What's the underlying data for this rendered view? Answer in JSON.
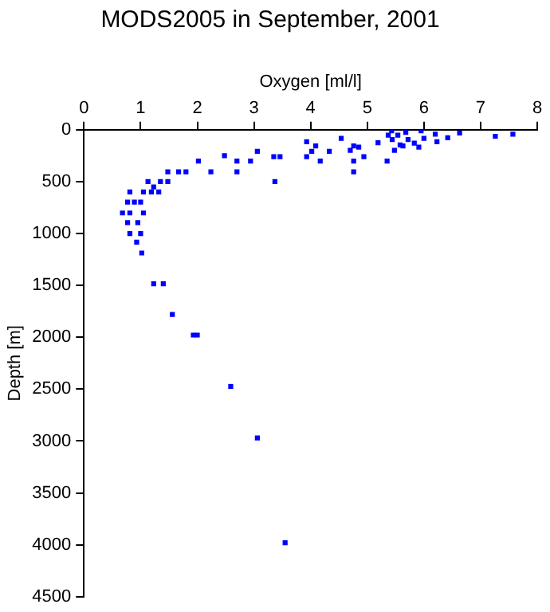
{
  "chart_data": {
    "type": "scatter",
    "title": "MODS2005 in September, 2001",
    "xlabel": "Oxygen [ml/l]",
    "ylabel": "Depth [m]",
    "xlim": [
      0,
      8
    ],
    "xticks": [
      0,
      1,
      2,
      3,
      4,
      5,
      6,
      7,
      8
    ],
    "ylim": [
      4500,
      0
    ],
    "yticks": [
      0,
      500,
      1000,
      1500,
      2000,
      2500,
      3000,
      3500,
      4000,
      4500
    ],
    "grid": false,
    "legend": false,
    "marker": "square",
    "series": [
      {
        "color": "#0000ff",
        "x": [
          5.43,
          5.37,
          5.44,
          5.54,
          5.68,
          5.72,
          5.58,
          5.48,
          5.63,
          5.95,
          6.0,
          6.2,
          6.23,
          6.42,
          6.63,
          7.26,
          7.57,
          5.19,
          5.35,
          5.83,
          5.91,
          4.54,
          4.7,
          4.76,
          4.85,
          4.94,
          4.76,
          4.76,
          3.93,
          4.02,
          3.93,
          4.09,
          4.17,
          4.33,
          3.35,
          3.46,
          3.37,
          3.06,
          2.94,
          2.7,
          2.7,
          2.48,
          2.24,
          2.02,
          1.8,
          1.67,
          1.48,
          1.48,
          1.35,
          1.32,
          1.23,
          1.13,
          1.19,
          1.05,
          0.81,
          1.0,
          0.77,
          0.89,
          0.68,
          0.81,
          1.05,
          0.77,
          0.95,
          0.81,
          1.0,
          0.93,
          1.02,
          1.23,
          1.4,
          1.56,
          1.93,
          2.0,
          2.59,
          3.06,
          3.55
        ],
        "values": [
          10,
          52,
          94,
          52,
          26,
          94,
          146,
          198,
          156,
          10,
          83,
          42,
          115,
          78,
          31,
          63,
          42,
          125,
          302,
          130,
          167,
          83,
          198,
          156,
          167,
          260,
          302,
          406,
          115,
          208,
          260,
          156,
          302,
          208,
          260,
          260,
          500,
          208,
          302,
          302,
          406,
          250,
          406,
          302,
          406,
          406,
          406,
          500,
          500,
          599,
          552,
          500,
          599,
          599,
          599,
          698,
          698,
          698,
          802,
          802,
          802,
          896,
          896,
          1000,
          1000,
          1083,
          1188,
          1484,
          1484,
          1781,
          1979,
          1979,
          2474,
          2970,
          3980
        ]
      }
    ]
  }
}
